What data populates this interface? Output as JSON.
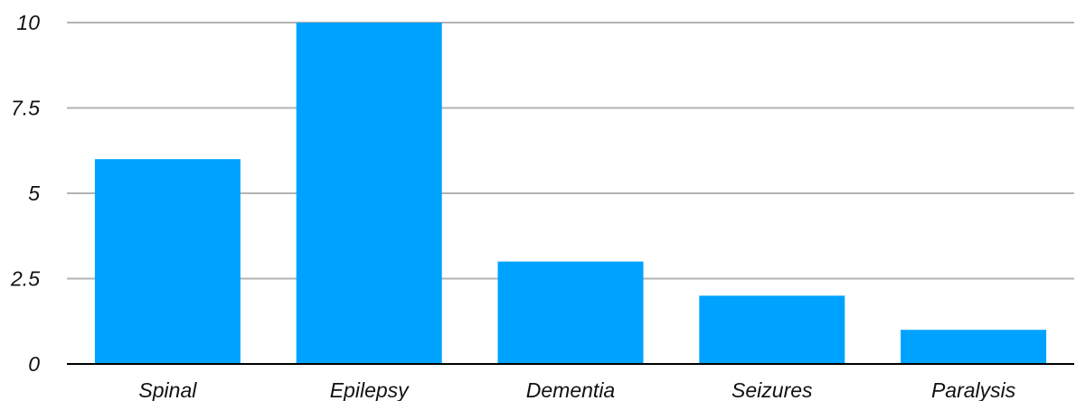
{
  "chart_data": {
    "type": "bar",
    "title": "",
    "xlabel": "",
    "ylabel": "",
    "categories": [
      "Spinal",
      "Epilepsy",
      "Dementia",
      "Seizures",
      "Paralysis"
    ],
    "values": [
      6,
      10,
      3,
      2,
      1
    ],
    "ylim": [
      0,
      10
    ],
    "yticks": [
      0,
      2.5,
      5,
      7.5,
      10
    ],
    "ytick_labels": [
      "0",
      "2.5",
      "5",
      "7.5",
      "10"
    ],
    "grid": true,
    "legend": "none",
    "colors": {
      "bar": "#00a2ff",
      "grid": "#b3b3b3",
      "axis": "#000000",
      "text": "#111111"
    }
  }
}
